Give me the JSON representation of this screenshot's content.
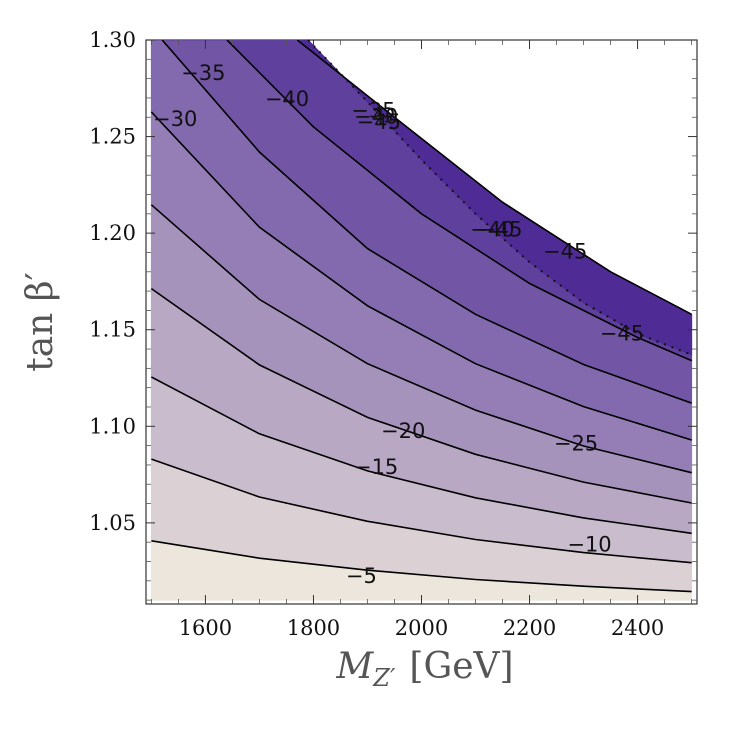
{
  "chart_data": {
    "type": "contour",
    "title": "",
    "xlabel": "M_Z′ [GeV]",
    "xlabel_main": "M",
    "xlabel_sub": "Z′",
    "xlabel_unit": "[GeV]",
    "ylabel": "tan β′",
    "xlim": [
      1490,
      2510
    ],
    "ylim": [
      1.008,
      1.3
    ],
    "x_ticks": [
      1600,
      1800,
      2000,
      2200,
      2400
    ],
    "y_ticks": [
      "1.05",
      "1.10",
      "1.15",
      "1.20",
      "1.25",
      "1.30"
    ],
    "grid": false,
    "colors": {
      "low": "#ece6dc",
      "high": "#4f2b95",
      "contour_line": "#000000"
    },
    "contours": [
      {
        "level": -5,
        "points": [
          [
            1500,
            1.0407
          ],
          [
            1700,
            1.0317
          ],
          [
            1900,
            1.0255
          ],
          [
            2100,
            1.0207
          ],
          [
            2300,
            1.0172
          ],
          [
            2500,
            1.0144
          ]
        ]
      },
      {
        "level": -10,
        "points": [
          [
            1500,
            1.083
          ],
          [
            1700,
            1.0634
          ],
          [
            1900,
            1.0508
          ],
          [
            2100,
            1.0414
          ],
          [
            2300,
            1.0346
          ],
          [
            2500,
            1.0294
          ]
        ]
      },
      {
        "level": -15,
        "points": [
          [
            1500,
            1.1255
          ],
          [
            1700,
            1.0961
          ],
          [
            1900,
            1.0769
          ],
          [
            2100,
            1.063
          ],
          [
            2300,
            1.0526
          ],
          [
            2500,
            1.0446
          ]
        ]
      },
      {
        "level": -20,
        "points": [
          [
            1500,
            1.1713
          ],
          [
            1700,
            1.1318
          ],
          [
            1900,
            1.1046
          ],
          [
            2100,
            1.0855
          ],
          [
            2300,
            1.0711
          ],
          [
            2500,
            1.0603
          ]
        ]
      },
      {
        "level": -25,
        "points": [
          [
            1500,
            1.2147
          ],
          [
            1700,
            1.1657
          ],
          [
            1900,
            1.1324
          ],
          [
            2100,
            1.1084
          ],
          [
            2300,
            1.0898
          ],
          [
            2500,
            1.076
          ]
        ]
      },
      {
        "level": -30,
        "points": [
          [
            1500,
            1.2627
          ],
          [
            1700,
            1.2031
          ],
          [
            1900,
            1.1624
          ],
          [
            2100,
            1.1324
          ],
          [
            2300,
            1.1102
          ],
          [
            2500,
            1.0929
          ]
        ]
      },
      {
        "level": -35,
        "points": [
          [
            1520,
            1.3
          ],
          [
            1700,
            1.242
          ],
          [
            1900,
            1.192
          ],
          [
            2100,
            1.158
          ],
          [
            2300,
            1.132
          ],
          [
            2500,
            1.112
          ]
        ]
      },
      {
        "level": -40,
        "points": [
          [
            1640,
            1.3
          ],
          [
            1800,
            1.255
          ],
          [
            2000,
            1.21
          ],
          [
            2200,
            1.174
          ],
          [
            2400,
            1.146
          ],
          [
            2500,
            1.134
          ]
        ]
      },
      {
        "level": -45,
        "points": [
          [
            1770,
            1.3
          ],
          [
            1950,
            1.26
          ],
          [
            2150,
            1.216
          ],
          [
            2350,
            1.18
          ],
          [
            2500,
            1.158
          ]
        ]
      }
    ],
    "region_boundary": [
      [
        1790,
        1.3
      ],
      [
        1900,
        1.268
      ],
      [
        2000,
        1.238
      ],
      [
        2100,
        1.21
      ],
      [
        2200,
        1.185
      ],
      [
        2300,
        1.164
      ],
      [
        2400,
        1.148
      ],
      [
        2500,
        1.137
      ]
    ],
    "contour_labels": [
      {
        "text": "−5",
        "x": 1860,
        "y": 1.0225
      },
      {
        "text": "−10",
        "x": 2270,
        "y": 1.0387
      },
      {
        "text": "−15",
        "x": 1875,
        "y": 1.079
      },
      {
        "text": "−20",
        "x": 1925,
        "y": 1.0975
      },
      {
        "text": "−25",
        "x": 2245,
        "y": 1.091
      },
      {
        "text": "−30",
        "x": 1503,
        "y": 1.259
      },
      {
        "text": "−35",
        "x": 1555,
        "y": 1.283
      },
      {
        "text": "−40",
        "x": 1710,
        "y": 1.2695
      },
      {
        "text": "−45",
        "x": 2225,
        "y": 1.1905
      },
      {
        "text": "−45",
        "x": 2330,
        "y": 1.148
      },
      {
        "text": "−40",
        "x": 2090,
        "y": 1.202
      },
      {
        "text": "−45",
        "x": 2105,
        "y": 1.202
      },
      {
        "text": "−35",
        "x": 1870,
        "y": 1.2635
      },
      {
        "text": "−40",
        "x": 1875,
        "y": 1.2605
      },
      {
        "text": "−45",
        "x": 1880,
        "y": 1.2575
      }
    ]
  }
}
